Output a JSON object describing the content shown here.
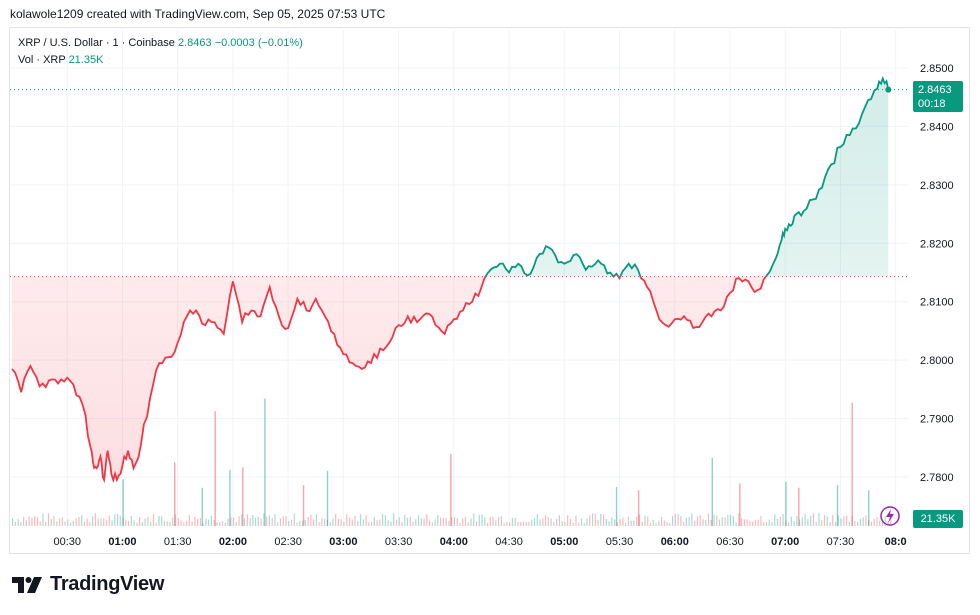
{
  "header": {
    "credit": "kolawole1209 created with TradingView.com, Sep 05, 2025 07:53 UTC"
  },
  "legend": {
    "symbol": "XRP / U.S. Dollar · 1 · Coinbase",
    "price": "2.8463",
    "change": "−0.0003 (−0.01%)",
    "vol_label": "Vol · XRP",
    "vol_value": "21.35K"
  },
  "price_tag": {
    "price": "2.8463",
    "countdown": "00:18"
  },
  "volume_tag": "21.35K",
  "logo": {
    "text": "TradingView",
    "icon": "tradingview-logo-icon"
  },
  "icons": {
    "snapshot": "lightning-camera-icon"
  },
  "colors": {
    "up": "#089981",
    "down": "#F23645",
    "grid": "#F0F3FA",
    "baseline_fill_down": "#FDE2E4",
    "baseline_fill_up": "#DCF3EE"
  },
  "chart_data": {
    "type": "area",
    "style": "baseline",
    "title": "XRP / U.S. Dollar · 1 · Coinbase",
    "baseline_value": 2.8143,
    "last_value": 2.8463,
    "y_ticks": [
      "2.8500",
      "2.8400",
      "2.8300",
      "2.8200",
      "2.8100",
      "2.8000",
      "2.7900",
      "2.7800"
    ],
    "ylim": [
      2.7725,
      2.8528
    ],
    "x_ticks": [
      "00:30",
      "01:00",
      "01:30",
      "02:00",
      "02:30",
      "03:00",
      "03:30",
      "04:00",
      "04:30",
      "05:00",
      "05:30",
      "06:00",
      "06:30",
      "07:00",
      "07:30",
      "08:0"
    ],
    "x_tick_minutes": [
      30,
      60,
      90,
      120,
      150,
      180,
      210,
      240,
      270,
      300,
      330,
      360,
      390,
      420,
      450,
      480
    ],
    "x_range_minutes": [
      0,
      478
    ],
    "series": [
      {
        "x": [
          0,
          5,
          10,
          15,
          20,
          25,
          30,
          35,
          40,
          42,
          44,
          46,
          48,
          50,
          52,
          54,
          57,
          60,
          63,
          66,
          70,
          75,
          80,
          85,
          90,
          95,
          100,
          105,
          110,
          115,
          120,
          125,
          130,
          135,
          140,
          145,
          150,
          155,
          160,
          165,
          170,
          175,
          180,
          185,
          190,
          195,
          200,
          205,
          210,
          215,
          220,
          225,
          230,
          235,
          240,
          245,
          250,
          255,
          260,
          265,
          270,
          275,
          280,
          285,
          290,
          295,
          300,
          305,
          310,
          315,
          320,
          325,
          330,
          335,
          340,
          345,
          350,
          355,
          360,
          365,
          370,
          375,
          380,
          385,
          390,
          395,
          400,
          405,
          410,
          415,
          418,
          420,
          423,
          426,
          430,
          435,
          440,
          445,
          450,
          455,
          460,
          465,
          470,
          473,
          476
        ],
        "values": [
          2.7985,
          2.7945,
          2.799,
          2.7955,
          2.7965,
          2.796,
          2.797,
          2.794,
          2.7905,
          2.786,
          2.7825,
          2.7815,
          2.7835,
          2.7795,
          2.7845,
          2.7805,
          2.7795,
          2.782,
          2.7845,
          2.7815,
          2.7855,
          2.7935,
          2.7995,
          2.8005,
          2.803,
          2.8075,
          2.8085,
          2.806,
          2.8065,
          2.8045,
          2.8135,
          2.8065,
          2.8085,
          2.8075,
          2.8125,
          2.8075,
          2.8055,
          2.8105,
          2.8085,
          2.8105,
          2.8075,
          2.8045,
          2.801,
          2.7995,
          2.7985,
          2.7995,
          2.802,
          2.803,
          2.806,
          2.8075,
          2.8065,
          2.808,
          2.806,
          2.8045,
          2.807,
          2.8085,
          2.81,
          2.8125,
          2.8155,
          2.8165,
          2.815,
          2.8165,
          2.8145,
          2.8175,
          2.8195,
          2.818,
          2.8165,
          2.818,
          2.8165,
          2.816,
          2.8165,
          2.815,
          2.814,
          2.8165,
          2.8155,
          2.8125,
          2.8085,
          2.806,
          2.807,
          2.8075,
          2.8055,
          2.8065,
          2.8075,
          2.8085,
          2.8115,
          2.814,
          2.8135,
          2.812,
          2.8145,
          2.8175,
          2.8205,
          2.8225,
          2.823,
          2.825,
          2.8255,
          2.8275,
          2.8295,
          2.8335,
          2.8365,
          2.8385,
          2.8405,
          2.8445,
          2.8465,
          2.8482,
          2.8463
        ]
      }
    ],
    "volume": {
      "label": "Vol · XRP",
      "last": "21.35K",
      "spikes_minutes": [
        60,
        88,
        103,
        110,
        118,
        125,
        137,
        158,
        171,
        238,
        328,
        340,
        380,
        395,
        420,
        427,
        448,
        456,
        465
      ],
      "spikes_values_k": [
        55,
        75,
        45,
        135,
        66,
        69,
        150,
        48,
        65,
        85,
        46,
        42,
        80,
        50,
        52,
        45,
        48,
        145,
        42
      ]
    }
  }
}
